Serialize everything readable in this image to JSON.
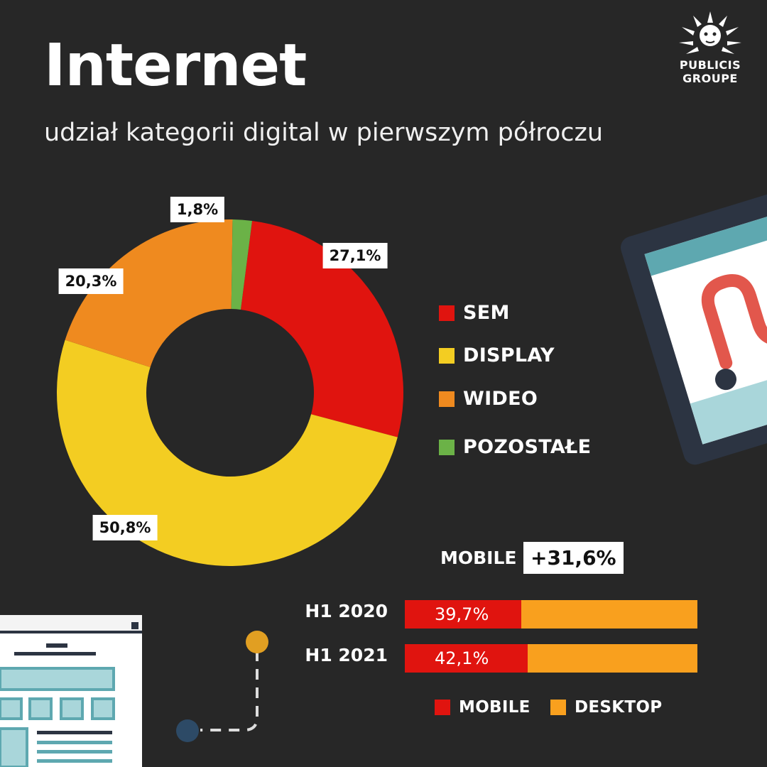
{
  "header": {
    "title": "Internet",
    "subtitle": "udział kategorii digital w pierwszym półroczu"
  },
  "logo": {
    "line1": "PUBLICIS",
    "line2": "GROUPE"
  },
  "colors": {
    "background": "#272727",
    "sem": "#E0140F",
    "display": "#F3CD22",
    "wideo": "#EF8A1F",
    "pozostale": "#6BB247",
    "mobile": "#E0140F",
    "desktop": "#F9A01E"
  },
  "chart_data": [
    {
      "type": "pie",
      "series": [
        {
          "name": "SEM",
          "value": 27.1,
          "label": "27,1%",
          "color": "#E0140F"
        },
        {
          "name": "DISPLAY",
          "value": 50.8,
          "label": "50,8%",
          "color": "#F3CD22"
        },
        {
          "name": "WIDEO",
          "value": 20.3,
          "label": "20,3%",
          "color": "#EF8A1F"
        },
        {
          "name": "POZOSTAŁE",
          "value": 1.8,
          "label": "1,8%",
          "color": "#6BB247"
        }
      ],
      "legend_placement": "right"
    },
    {
      "type": "bar",
      "stacked": true,
      "orientation": "horizontal",
      "categories": [
        "H1 2020",
        "H1 2021"
      ],
      "series": [
        {
          "name": "MOBILE",
          "values": [
            39.7,
            42.1
          ],
          "labels": [
            "39,7%",
            "42,1%"
          ],
          "color": "#E0140F"
        },
        {
          "name": "DESKTOP",
          "values": [
            60.3,
            57.9
          ],
          "color": "#F9A01E"
        }
      ],
      "annotation": {
        "label": "MOBILE",
        "value": "+31,6%"
      },
      "legend_placement": "bottom"
    }
  ]
}
